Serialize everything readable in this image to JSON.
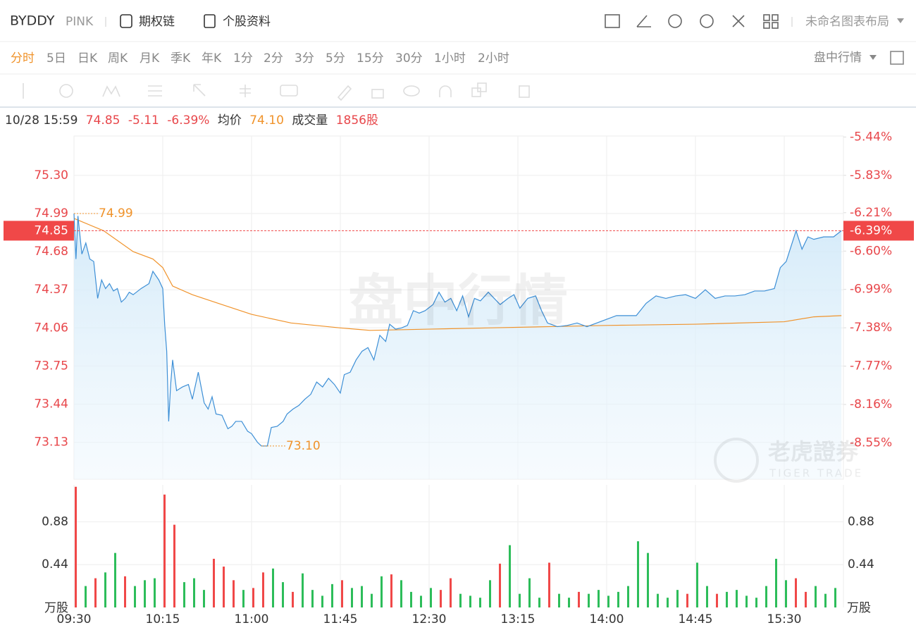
{
  "header": {
    "symbol": "BYDDY",
    "exchange": "PINK",
    "links": [
      "期权链",
      "个股资料"
    ],
    "layout": "未命名图表布局"
  },
  "tabs": {
    "periods": [
      "分时",
      "5日",
      "日K",
      "周K",
      "月K",
      "季K",
      "年K",
      "1分",
      "2分",
      "3分",
      "5分",
      "15分",
      "30分",
      "1小时",
      "2小时"
    ],
    "active": 0,
    "mode": "盘中行情"
  },
  "quote": {
    "time": "10/28 15:59",
    "price": "74.85",
    "change": "-5.11",
    "change_pct": "-6.39%",
    "avg_label": "均价",
    "avg": "74.10",
    "volume_label": "成交量",
    "volume": "1856股"
  },
  "watermark": {
    "text": "盘中行情",
    "brand": "老虎證券",
    "brand_en": "TIGER TRADE"
  },
  "chart_data": {
    "type": "line",
    "grid": true,
    "xlim": [
      "09:30",
      "16:00"
    ],
    "xticks": [
      "09:30",
      "10:15",
      "11:00",
      "11:45",
      "12:30",
      "13:15",
      "14:00",
      "14:45",
      "15:30"
    ],
    "ylim": [
      72.83,
      75.62
    ],
    "yticks": [
      {
        "value": 75.3,
        "label": "75.30"
      },
      74.99,
      74.68,
      74.37,
      74.06,
      73.75,
      73.44,
      73.13
    ],
    "y2lim": [
      -8.92,
      -5.43
    ],
    "y2ticks": [
      {
        "value": -5.44,
        "label": "-5.44%"
      },
      {
        "value": -5.83,
        "label": "-5.83%"
      },
      {
        "value": -6.21,
        "label": "-6.21%"
      },
      {
        "value": -6.6,
        "label": "-6.60%"
      },
      {
        "value": -6.99,
        "label": "-6.99%"
      },
      {
        "value": -7.38,
        "label": "-7.38%"
      },
      {
        "value": -7.77,
        "label": "-7.77%"
      },
      {
        "value": -8.16,
        "label": "-8.16%"
      },
      {
        "value": -8.55,
        "label": "-8.55%"
      }
    ],
    "price": {
      "color": "#3d8fd6",
      "x": [
        "09:30",
        "09:31",
        "09:32",
        "09:34",
        "09:36",
        "09:38",
        "09:40",
        "09:42",
        "09:44",
        "09:46",
        "09:48",
        "09:50",
        "09:52",
        "09:54",
        "09:56",
        "09:58",
        "10:00",
        "10:04",
        "10:08",
        "10:10",
        "10:13",
        "10:15",
        "10:16",
        "10:17",
        "10:18",
        "10:19",
        "10:20",
        "10:22",
        "10:25",
        "10:28",
        "10:30",
        "10:33",
        "10:36",
        "10:38",
        "10:40",
        "10:42",
        "10:45",
        "10:48",
        "10:50",
        "10:52",
        "10:55",
        "10:58",
        "11:00",
        "11:03",
        "11:05",
        "11:08",
        "11:10",
        "11:13",
        "11:16",
        "11:18",
        "11:21",
        "11:24",
        "11:27",
        "11:30",
        "11:33",
        "11:36",
        "11:39",
        "11:42",
        "11:45",
        "11:47",
        "11:50",
        "11:53",
        "11:56",
        "11:59",
        "12:02",
        "12:05",
        "12:08",
        "12:10",
        "12:13",
        "12:16",
        "12:19",
        "12:22",
        "12:25",
        "12:28",
        "12:32",
        "12:35",
        "12:38",
        "12:41",
        "12:44",
        "12:47",
        "12:50",
        "12:53",
        "12:56",
        "13:00",
        "13:03",
        "13:06",
        "13:10",
        "13:13",
        "13:16",
        "13:20",
        "13:24",
        "13:27",
        "13:30",
        "13:35",
        "13:40",
        "13:45",
        "13:50",
        "13:55",
        "14:00",
        "14:05",
        "14:10",
        "14:15",
        "14:20",
        "14:25",
        "14:30",
        "14:35",
        "14:40",
        "14:45",
        "14:50",
        "14:55",
        "15:00",
        "15:05",
        "15:10",
        "15:15",
        "15:20",
        "15:25",
        "15:28",
        "15:31",
        "15:34",
        "15:36",
        "15:39",
        "15:42",
        "15:45",
        "15:50",
        "15:55",
        "15:59"
      ],
      "values": [
        74.99,
        74.62,
        74.97,
        74.66,
        74.75,
        74.62,
        74.6,
        74.3,
        74.45,
        74.38,
        74.42,
        74.36,
        74.38,
        74.27,
        74.3,
        74.35,
        74.33,
        74.38,
        74.42,
        74.52,
        74.45,
        74.38,
        74.08,
        73.87,
        73.3,
        73.6,
        73.8,
        73.55,
        73.58,
        73.6,
        73.48,
        73.7,
        73.45,
        73.4,
        73.5,
        73.36,
        73.35,
        73.24,
        73.26,
        73.3,
        73.3,
        73.22,
        73.2,
        73.13,
        73.1,
        73.1,
        73.25,
        73.26,
        73.3,
        73.36,
        73.4,
        73.43,
        73.48,
        73.52,
        73.62,
        73.58,
        73.65,
        73.6,
        73.53,
        73.68,
        73.7,
        73.8,
        73.87,
        73.9,
        73.8,
        74.0,
        73.95,
        74.09,
        74.05,
        74.06,
        74.08,
        74.2,
        74.18,
        74.2,
        74.25,
        74.35,
        74.27,
        74.3,
        74.2,
        74.32,
        74.15,
        74.3,
        74.28,
        74.35,
        74.3,
        74.25,
        74.3,
        74.33,
        74.22,
        74.3,
        74.32,
        74.2,
        74.1,
        74.07,
        74.08,
        74.1,
        74.07,
        74.1,
        74.13,
        74.16,
        74.16,
        74.16,
        74.26,
        74.32,
        74.3,
        74.32,
        74.33,
        74.3,
        74.37,
        74.3,
        74.32,
        74.32,
        74.33,
        74.36,
        74.36,
        74.38,
        74.55,
        74.6,
        74.75,
        74.85,
        74.7,
        74.8,
        74.78,
        74.8,
        74.8,
        74.85
      ]
    },
    "average": {
      "color": "#f0932b",
      "x": [
        "09:30",
        "09:45",
        "10:00",
        "10:10",
        "10:15",
        "10:20",
        "10:30",
        "10:45",
        "11:00",
        "11:20",
        "11:45",
        "12:00",
        "12:30",
        "13:00",
        "13:30",
        "14:00",
        "14:45",
        "15:30",
        "15:45",
        "15:59"
      ],
      "values": [
        74.95,
        74.85,
        74.68,
        74.62,
        74.55,
        74.4,
        74.33,
        74.25,
        74.17,
        74.1,
        74.06,
        74.04,
        74.05,
        74.06,
        74.07,
        74.08,
        74.09,
        74.11,
        74.15,
        74.16
      ]
    },
    "last": {
      "value": 74.85,
      "pct": {
        "value": -6.39,
        "label": "-6.39%"
      },
      "color": "#f04848"
    },
    "annotations": [
      {
        "x": "09:30",
        "value": 74.99
      },
      {
        "x": "11:05",
        "value": 73.1,
        "label": "73.10"
      }
    ],
    "volume": {
      "unit": "万股",
      "ylim": [
        0,
        1.26
      ],
      "yticks": [
        0.44,
        0.88
      ],
      "x": [
        "09:30",
        "09:35",
        "09:40",
        "09:45",
        "09:50",
        "09:55",
        "10:00",
        "10:05",
        "10:10",
        "10:15",
        "10:20",
        "10:25",
        "10:30",
        "10:35",
        "10:40",
        "10:45",
        "10:50",
        "10:55",
        "11:00",
        "11:05",
        "11:10",
        "11:15",
        "11:20",
        "11:25",
        "11:30",
        "11:35",
        "11:40",
        "11:45",
        "11:50",
        "11:55",
        "12:00",
        "12:05",
        "12:10",
        "12:15",
        "12:20",
        "12:25",
        "12:30",
        "12:35",
        "12:40",
        "12:45",
        "12:50",
        "12:55",
        "13:00",
        "13:05",
        "13:10",
        "13:15",
        "13:20",
        "13:25",
        "13:30",
        "13:35",
        "13:40",
        "13:45",
        "13:50",
        "13:55",
        "14:00",
        "14:05",
        "14:10",
        "14:15",
        "14:20",
        "14:25",
        "14:30",
        "14:35",
        "14:40",
        "14:45",
        "14:50",
        "14:55",
        "15:00",
        "15:05",
        "15:10",
        "15:15",
        "15:20",
        "15:25",
        "15:30",
        "15:35",
        "15:40",
        "15:45",
        "15:50",
        "15:55"
      ],
      "values": [
        1.24,
        0.22,
        0.3,
        0.36,
        0.56,
        0.32,
        0.22,
        0.28,
        0.3,
        1.16,
        0.85,
        0.26,
        0.3,
        0.18,
        0.5,
        0.42,
        0.28,
        0.18,
        0.2,
        0.36,
        0.4,
        0.26,
        0.16,
        0.35,
        0.18,
        0.12,
        0.24,
        0.28,
        0.2,
        0.22,
        0.14,
        0.32,
        0.34,
        0.28,
        0.16,
        0.12,
        0.2,
        0.18,
        0.3,
        0.14,
        0.12,
        0.1,
        0.28,
        0.45,
        0.64,
        0.14,
        0.3,
        0.1,
        0.46,
        0.14,
        0.1,
        0.16,
        0.14,
        0.18,
        0.12,
        0.16,
        0.22,
        0.68,
        0.56,
        0.14,
        0.1,
        0.18,
        0.14,
        0.46,
        0.22,
        0.14,
        0.16,
        0.18,
        0.12,
        0.1,
        0.22,
        0.5,
        0.28,
        0.3,
        0.16,
        0.22,
        0.14,
        0.2
      ],
      "colors": [
        "#f04848",
        "#2dbd5a",
        "#f04848",
        "#2dbd5a",
        "#2dbd5a",
        "#f04848",
        "#2dbd5a",
        "#2dbd5a",
        "#2dbd5a",
        "#f04848",
        "#f04848",
        "#2dbd5a",
        "#2dbd5a",
        "#2dbd5a",
        "#f04848",
        "#f04848",
        "#f04848",
        "#2dbd5a",
        "#f04848",
        "#f04848",
        "#2dbd5a",
        "#2dbd5a",
        "#f04848",
        "#2dbd5a",
        "#2dbd5a",
        "#2dbd5a",
        "#2dbd5a",
        "#f04848",
        "#2dbd5a",
        "#2dbd5a",
        "#2dbd5a",
        "#2dbd5a",
        "#f04848",
        "#2dbd5a",
        "#2dbd5a",
        "#2dbd5a",
        "#2dbd5a",
        "#f04848",
        "#f04848",
        "#2dbd5a",
        "#2dbd5a",
        "#2dbd5a",
        "#2dbd5a",
        "#f04848",
        "#2dbd5a",
        "#2dbd5a",
        "#2dbd5a",
        "#2dbd5a",
        "#f04848",
        "#2dbd5a",
        "#2dbd5a",
        "#f04848",
        "#2dbd5a",
        "#2dbd5a",
        "#2dbd5a",
        "#2dbd5a",
        "#2dbd5a",
        "#2dbd5a",
        "#2dbd5a",
        "#2dbd5a",
        "#2dbd5a",
        "#2dbd5a",
        "#f04848",
        "#2dbd5a",
        "#2dbd5a",
        "#f04848",
        "#2dbd5a",
        "#2dbd5a",
        "#2dbd5a",
        "#2dbd5a",
        "#2dbd5a",
        "#2dbd5a",
        "#2dbd5a",
        "#f04848",
        "#f04848",
        "#2dbd5a",
        "#2dbd5a",
        "#2dbd5a"
      ]
    }
  }
}
